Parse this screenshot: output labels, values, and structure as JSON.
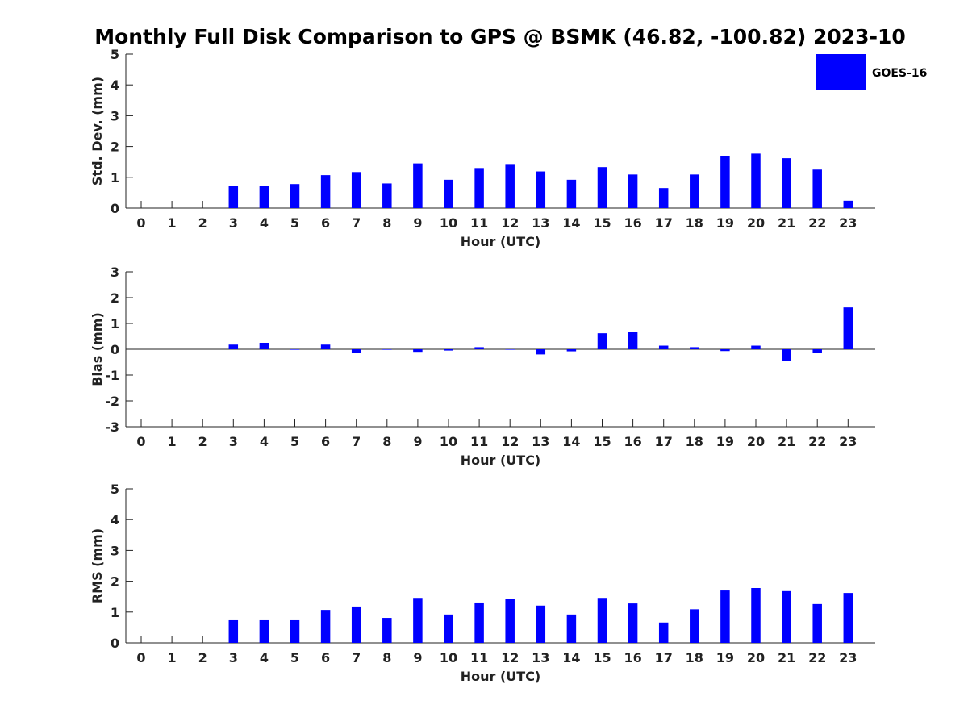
{
  "title": "Monthly Full Disk Comparison to GPS @ BSMK (46.82, -100.82) 2023-10",
  "legend": {
    "label": "GOES-16",
    "color": "#0000ff"
  },
  "chart_data": [
    {
      "type": "bar",
      "xlabel": "Hour (UTC)",
      "ylabel": "Std. Dev. (mm)",
      "ylim": [
        0,
        5
      ],
      "yticks": [
        0,
        1,
        2,
        3,
        4,
        5
      ],
      "categories": [
        "0",
        "1",
        "2",
        "3",
        "4",
        "5",
        "6",
        "7",
        "8",
        "9",
        "10",
        "11",
        "12",
        "13",
        "14",
        "15",
        "16",
        "17",
        "18",
        "19",
        "20",
        "21",
        "22",
        "23"
      ],
      "series": [
        {
          "name": "GOES-16",
          "values": [
            null,
            null,
            null,
            0.73,
            0.73,
            0.78,
            1.07,
            1.17,
            0.8,
            1.45,
            0.92,
            1.3,
            1.43,
            1.19,
            0.92,
            1.33,
            1.09,
            0.65,
            1.09,
            1.7,
            1.77,
            1.62,
            1.25,
            0.24
          ]
        }
      ],
      "grid": false
    },
    {
      "type": "bar",
      "xlabel": "Hour (UTC)",
      "ylabel": "Bias (mm)",
      "ylim": [
        -3,
        3
      ],
      "yticks": [
        -3,
        -2,
        -1,
        0,
        1,
        2,
        3
      ],
      "categories": [
        "0",
        "1",
        "2",
        "3",
        "4",
        "5",
        "6",
        "7",
        "8",
        "9",
        "10",
        "11",
        "12",
        "13",
        "14",
        "15",
        "16",
        "17",
        "18",
        "19",
        "20",
        "21",
        "22",
        "23"
      ],
      "series": [
        {
          "name": "GOES-16",
          "values": [
            null,
            null,
            null,
            0.18,
            0.25,
            -0.02,
            0.18,
            -0.13,
            -0.02,
            -0.1,
            -0.05,
            0.08,
            0.0,
            -0.2,
            -0.08,
            0.62,
            0.68,
            0.14,
            0.08,
            -0.07,
            0.14,
            -0.45,
            -0.14,
            1.62
          ]
        }
      ],
      "grid": false
    },
    {
      "type": "bar",
      "xlabel": "Hour (UTC)",
      "ylabel": "RMS (mm)",
      "ylim": [
        0,
        5
      ],
      "yticks": [
        0,
        1,
        2,
        3,
        4,
        5
      ],
      "categories": [
        "0",
        "1",
        "2",
        "3",
        "4",
        "5",
        "6",
        "7",
        "8",
        "9",
        "10",
        "11",
        "12",
        "13",
        "14",
        "15",
        "16",
        "17",
        "18",
        "19",
        "20",
        "21",
        "22",
        "23"
      ],
      "series": [
        {
          "name": "GOES-16",
          "values": [
            null,
            null,
            null,
            0.76,
            0.76,
            0.76,
            1.07,
            1.18,
            0.81,
            1.46,
            0.92,
            1.31,
            1.42,
            1.21,
            0.92,
            1.46,
            1.28,
            0.66,
            1.09,
            1.7,
            1.78,
            1.68,
            1.26,
            1.62
          ]
        }
      ],
      "grid": false
    }
  ]
}
